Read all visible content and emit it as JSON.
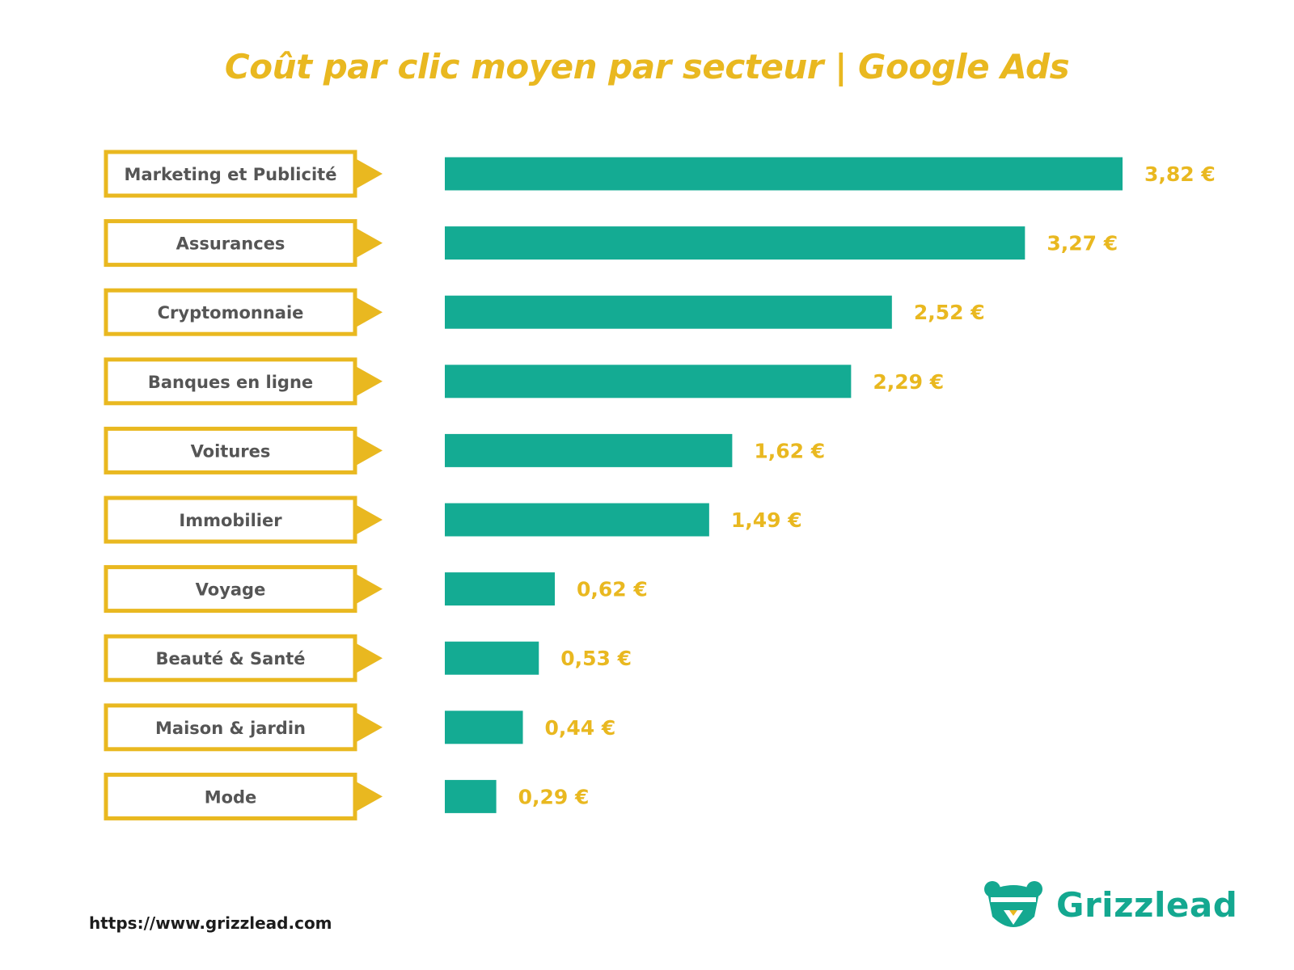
{
  "chart_data": {
    "type": "bar",
    "orientation": "horizontal",
    "title": "Coût par clic moyen par secteur | Google Ads",
    "categories": [
      "Marketing et Publicité",
      "Assurances",
      "Cryptomonnaie",
      "Banques en ligne",
      "Voitures",
      "Immobilier",
      "Voyage",
      "Beauté & Santé",
      "Maison & jardin",
      "Mode"
    ],
    "values": [
      3.82,
      3.27,
      2.52,
      2.29,
      1.62,
      1.49,
      0.62,
      0.53,
      0.44,
      0.29
    ],
    "value_labels": [
      "3,82 €",
      "3,27 €",
      "2,52 €",
      "2,29 €",
      "1,62 €",
      "1,49 €",
      "0,62 €",
      "0,53 €",
      "0,44 €",
      "0,29 €"
    ],
    "unit": "€",
    "xlim": [
      0,
      3.82
    ],
    "grid": false,
    "legend": "none"
  },
  "colors": {
    "bar": "#14ab93",
    "accent": "#e9b820",
    "label_text": "#555555",
    "footer_text": "#1c1c1c"
  },
  "footer": {
    "url": "https://www.grizzlead.com"
  },
  "logo": {
    "name": "Grizzlead",
    "icon": "bear-head-icon"
  }
}
